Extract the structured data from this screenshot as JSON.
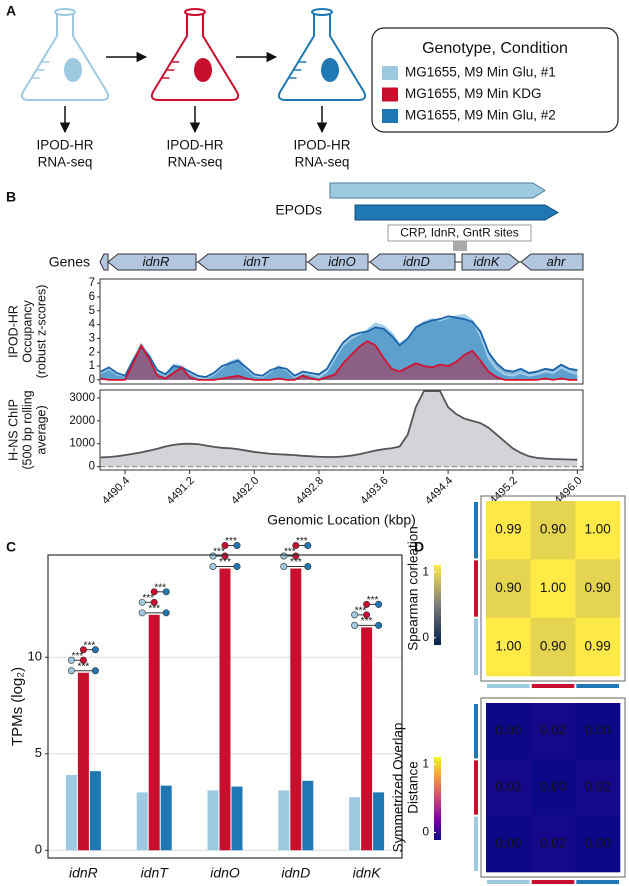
{
  "panel_labels": {
    "a": "A",
    "b": "B",
    "c": "C",
    "d": "D"
  },
  "workflow": {
    "steps": [
      [
        "IPOD-HR",
        "RNA-seq"
      ],
      [
        "IPOD-HR",
        "RNA-seq"
      ],
      [
        "IPOD-HR",
        "RNA-seq"
      ]
    ]
  },
  "legend": {
    "title": "Genotype, Condition",
    "items": [
      {
        "label": "MG1655, M9 Min Glu, #1",
        "color": "#9ecae1"
      },
      {
        "label": "MG1655, M9 Min KDG",
        "color": "#c8102e"
      },
      {
        "label": "MG1655, M9 Min Glu, #2",
        "color": "#1f78b4"
      }
    ]
  },
  "genome_track": {
    "epods_label": "EPODs",
    "sites_label": "CRP, IdnR, GntR sites",
    "genes_label": "Genes",
    "genes": [
      null,
      "idnR",
      "idnT",
      "idnO",
      "idnD",
      "idnK",
      "ahr"
    ]
  },
  "chart_data": [
    {
      "type": "area",
      "ylabel": [
        "IPOD-HR",
        "Occupancy",
        "(robust z-scores)"
      ],
      "x": [
        4490.1,
        4490.2,
        4490.3,
        4490.4,
        4490.5,
        4490.6,
        4490.7,
        4490.8,
        4490.9,
        4491,
        4491.1,
        4491.2,
        4491.3,
        4491.4,
        4491.5,
        4491.6,
        4491.7,
        4491.8,
        4491.9,
        4492,
        4492.1,
        4492.2,
        4492.3,
        4492.4,
        4492.5,
        4492.6,
        4492.7,
        4492.8,
        4492.9,
        4493,
        4493.1,
        4493.2,
        4493.3,
        4493.4,
        4493.5,
        4493.6,
        4493.7,
        4493.8,
        4493.9,
        4494,
        4494.1,
        4494.2,
        4494.3,
        4494.4,
        4494.5,
        4494.6,
        4494.7,
        4494.8,
        4494.9,
        4495,
        4495.1,
        4495.2,
        4495.3,
        4495.4,
        4495.5,
        4495.6,
        4495.7,
        4495.8,
        4495.9,
        4496
      ],
      "series": [
        {
          "color": "#a6d0ea",
          "fill": "#a6d0ea",
          "fill_opacity": 1,
          "values": [
            0.5,
            0.8,
            0.4,
            0.3,
            1.5,
            2.6,
            1.8,
            0.6,
            0.3,
            1.1,
            1.0,
            0.5,
            0.2,
            0.1,
            0.4,
            0.9,
            1.3,
            1.5,
            0.8,
            0.3,
            0.2,
            0.6,
            1.0,
            0.7,
            0.2,
            0.5,
            0.4,
            0.2,
            0.6,
            1.6,
            2.5,
            3.0,
            3.3,
            3.6,
            4.1,
            3.9,
            3.4,
            2.6,
            3.0,
            3.8,
            4.2,
            4.4,
            4.3,
            4.5,
            4.6,
            4.7,
            4.3,
            3.2,
            1.6,
            0.8,
            0.4,
            0.3,
            0.5,
            0.3,
            0.4,
            0.6,
            0.5,
            0.9,
            0.6,
            0.4
          ]
        },
        {
          "color": "#1a63a8",
          "fill": "#1f78b4",
          "fill_opacity": 0.55,
          "values": [
            0.6,
            0.9,
            0.5,
            0.3,
            1.4,
            2.4,
            1.7,
            0.7,
            0.4,
            1.0,
            0.9,
            0.6,
            0.3,
            0.2,
            0.5,
            1.0,
            1.2,
            1.4,
            0.9,
            0.4,
            0.3,
            0.7,
            0.9,
            0.8,
            0.3,
            0.6,
            0.5,
            0.4,
            0.8,
            1.8,
            2.7,
            3.2,
            3.4,
            3.5,
            3.8,
            3.7,
            3.2,
            2.5,
            3.0,
            3.8,
            4.1,
            4.3,
            4.4,
            4.6,
            4.5,
            4.4,
            4.2,
            3.5,
            2.0,
            1.2,
            0.7,
            0.6,
            0.8,
            0.5,
            0.6,
            0.8,
            0.7,
            1.1,
            0.8,
            0.7
          ]
        },
        {
          "color": "#d4112f",
          "fill": "#c8102e",
          "fill_opacity": 0.45,
          "values": [
            0.1,
            0,
            0,
            0,
            1.2,
            2.5,
            1.5,
            0.3,
            0.1,
            0.5,
            0.9,
            0.2,
            0,
            0,
            0,
            0.1,
            0.2,
            0.3,
            0.1,
            0,
            0,
            0,
            0.1,
            0,
            0,
            0.3,
            0.1,
            0,
            0.2,
            0.4,
            1.2,
            1.8,
            2.4,
            2.8,
            2.5,
            1.6,
            0.8,
            0.6,
            0.9,
            1.2,
            1.0,
            0.9,
            1.1,
            1.0,
            1.3,
            1.8,
            2.1,
            1.4,
            0.6,
            0.2,
            0,
            0,
            0,
            0,
            0,
            0.1,
            0,
            0.1,
            0,
            0
          ]
        }
      ],
      "xlim": [
        4490.09,
        4496.07
      ],
      "ylim": [
        -0.3,
        7.3
      ],
      "yticks": [
        0,
        1,
        2,
        3,
        4,
        5,
        6,
        7
      ]
    },
    {
      "type": "area",
      "ylabel": [
        "H-NS ChIP",
        "(500 bp rolling",
        "average)"
      ],
      "xlabel": "Genomic Location (kbp)",
      "x": [
        4490.1,
        4490.2,
        4490.3,
        4490.4,
        4490.5,
        4490.6,
        4490.7,
        4490.8,
        4490.9,
        4491,
        4491.1,
        4491.2,
        4491.3,
        4491.4,
        4491.5,
        4491.6,
        4491.7,
        4491.8,
        4491.9,
        4492,
        4492.1,
        4492.2,
        4492.3,
        4492.4,
        4492.5,
        4492.6,
        4492.7,
        4492.8,
        4492.9,
        4493,
        4493.1,
        4493.2,
        4493.3,
        4493.4,
        4493.5,
        4493.6,
        4493.7,
        4493.8,
        4493.9,
        4494,
        4494.1,
        4494.2,
        4494.3,
        4494.4,
        4494.5,
        4494.6,
        4494.7,
        4494.8,
        4494.9,
        4495,
        4495.1,
        4495.2,
        4495.3,
        4495.4,
        4495.5,
        4495.6,
        4495.7,
        4495.8,
        4495.9,
        4496
      ],
      "series": [
        {
          "color": "#555555",
          "fill": "#d3d3d9",
          "fill_opacity": 1,
          "values": [
            400,
            420,
            450,
            500,
            560,
            620,
            700,
            780,
            880,
            950,
            990,
            1000,
            980,
            920,
            860,
            820,
            800,
            760,
            700,
            640,
            600,
            560,
            540,
            520,
            500,
            470,
            450,
            430,
            420,
            420,
            440,
            480,
            540,
            620,
            700,
            760,
            800,
            880,
            1400,
            2600,
            3300,
            3300,
            3300,
            2600,
            2300,
            2100,
            2000,
            1900,
            1700,
            1400,
            1100,
            800,
            600,
            450,
            380,
            350,
            330,
            320,
            310,
            300
          ]
        }
      ],
      "xlim": [
        4490.09,
        4496.07
      ],
      "xticks": [
        4490.4,
        4491.2,
        {
          "value": 4492,
          "label": "4492.0"
        },
        4492.8,
        4493.6,
        4494.4,
        4495.2,
        {
          "value": 4496,
          "label": "4496.0"
        }
      ],
      "ylim": [
        -150,
        3350
      ],
      "yticks": [
        0,
        1000,
        2000,
        3000
      ],
      "zero_line": "dashed"
    },
    {
      "type": "bar",
      "ylabel": "TPMs (log₂)",
      "categories": [
        "idnR",
        "idnT",
        "idnO",
        "idnD",
        "idnK"
      ],
      "series": [
        {
          "color": "#9ecae1",
          "values": [
            3.9,
            3.0,
            3.1,
            3.1,
            2.75
          ]
        },
        {
          "color": "#c8102e",
          "values": [
            9.2,
            12.2,
            14.6,
            14.6,
            11.55
          ]
        },
        {
          "color": "#1f78b4",
          "values": [
            4.1,
            3.35,
            3.3,
            3.6,
            3.0
          ]
        }
      ],
      "significance": [
        [
          "***",
          "***",
          "***"
        ],
        [
          "***",
          "***",
          "***"
        ],
        [
          "***",
          "***",
          "***"
        ],
        [
          "***",
          "***",
          "***"
        ],
        [
          "***",
          "***",
          "***"
        ]
      ],
      "ylim": [
        -0.4,
        15.3
      ],
      "yticks": [
        0,
        5,
        10
      ],
      "grid": true
    },
    {
      "type": "heatmap",
      "ylabel": [
        "Spearman corleation"
      ],
      "values": [
        [
          0.99,
          0.9,
          1
        ],
        [
          0.9,
          1,
          0.9
        ],
        [
          1,
          0.9,
          0.99
        ]
      ],
      "value_labels": [
        [
          "0.99",
          "0.90",
          "1.00"
        ],
        [
          "0.90",
          "1.00",
          "0.90"
        ],
        [
          "1.00",
          "0.90",
          "0.99"
        ]
      ],
      "colormap": "cividis",
      "zlim": [
        0,
        1
      ],
      "zticks": [
        0,
        1
      ],
      "text_color": "#111111",
      "row_colors": [
        "#1f78b4",
        "#c8102e",
        "#9ecae1"
      ],
      "col_colors": [
        "#9ecae1",
        "#c8102e",
        "#1f78b4"
      ]
    },
    {
      "type": "heatmap",
      "ylabel": [
        "Symmetrized Overlap",
        "Distance"
      ],
      "values": [
        [
          0,
          0.02,
          0
        ],
        [
          0.02,
          0,
          0.02
        ],
        [
          0,
          0.02,
          0
        ]
      ],
      "value_labels": [
        [
          "0.00",
          "0.02",
          "0.00"
        ],
        [
          "0.02",
          "0.00",
          "0.02"
        ],
        [
          "0.00",
          "0.02",
          "0.00"
        ]
      ],
      "colormap": "plasma",
      "zlim": [
        0,
        1
      ],
      "zticks": [
        0,
        1
      ],
      "text_color": "#ffffff",
      "row_colors": [
        "#1f78b4",
        "#c8102e",
        "#9ecae1"
      ],
      "col_colors": [
        "#9ecae1",
        "#c8102e",
        "#1f78b4"
      ]
    }
  ]
}
